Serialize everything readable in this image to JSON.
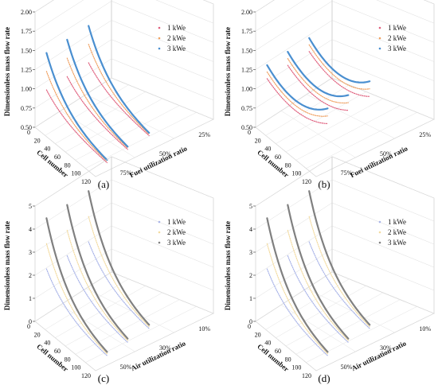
{
  "panels": [
    {
      "label": "(a)",
      "chart_data": {
        "type": "line",
        "title": "",
        "zlabel": "Dimensionless mass flow rate",
        "xlabel": "Cell number",
        "ylabel": "Fuel utilization ratio",
        "zlim": [
          0.5,
          2.0
        ],
        "z_ticks": [
          "2.00",
          "1.75",
          "1.50",
          "1.25",
          "1.00",
          "0.75",
          "0.50"
        ],
        "x_ticks": [
          "0",
          "20",
          "40",
          "60",
          "80",
          "100",
          "120"
        ],
        "y_ticks": [
          "25%",
          "50%",
          "75%"
        ],
        "grid": true,
        "legend_position": "top-right",
        "series": [
          {
            "name": "1 kWe",
            "color": "#e0607e",
            "style": "dot"
          },
          {
            "name": "2 kWe",
            "color": "#f0a060",
            "style": "dot"
          },
          {
            "name": "3 kWe",
            "color": "#4a8fd0",
            "style": "dot"
          }
        ]
      }
    },
    {
      "label": "(b)",
      "chart_data": {
        "type": "line",
        "title": "",
        "zlabel": "Dimensionless mass flow rate",
        "xlabel": "Cell number",
        "ylabel": "Fuel utilization ratio",
        "zlim": [
          0.5,
          2.0
        ],
        "z_ticks": [
          "2.00",
          "1.75",
          "1.50",
          "1.25",
          "1.00",
          "0.75",
          "0.50"
        ],
        "x_ticks": [
          "0",
          "20",
          "40",
          "60",
          "80",
          "100",
          "120"
        ],
        "y_ticks": [
          "25%",
          "50%",
          "75%"
        ],
        "grid": true,
        "legend_position": "top-right",
        "series": [
          {
            "name": "1 kWe",
            "color": "#e0607e",
            "style": "dot"
          },
          {
            "name": "2 kWe",
            "color": "#f0a060",
            "style": "dot"
          },
          {
            "name": "3 kWe",
            "color": "#4a8fd0",
            "style": "dot"
          }
        ]
      }
    },
    {
      "label": "(c)",
      "chart_data": {
        "type": "line",
        "title": "",
        "zlabel": "Dimensionless mass flow rate",
        "xlabel": "Cell number",
        "ylabel": "Air utilization ratio",
        "zlim": [
          0,
          5
        ],
        "z_ticks": [
          "5",
          "4",
          "3",
          "2",
          "1",
          "0"
        ],
        "x_ticks": [
          "0",
          "20",
          "40",
          "60",
          "80",
          "100",
          "120"
        ],
        "y_ticks": [
          "10%",
          "30%",
          "50%"
        ],
        "grid": true,
        "legend_position": "top-right",
        "series": [
          {
            "name": "1 kWe",
            "color": "#a9b4e8",
            "style": "dot"
          },
          {
            "name": "2 kWe",
            "color": "#f3dba0",
            "style": "dot"
          },
          {
            "name": "3 kWe",
            "color": "#808080",
            "style": "dot"
          }
        ]
      }
    },
    {
      "label": "(d)",
      "chart_data": {
        "type": "line",
        "title": "",
        "zlabel": "Dimensionless mass flow rate",
        "xlabel": "Cell number",
        "ylabel": "Air utilization ratio",
        "zlim": [
          0,
          5
        ],
        "z_ticks": [
          "5",
          "4",
          "3",
          "2",
          "1",
          "0"
        ],
        "x_ticks": [
          "0",
          "20",
          "40",
          "60",
          "80",
          "100",
          "120"
        ],
        "y_ticks": [
          "10%",
          "30%",
          "50%"
        ],
        "grid": true,
        "legend_position": "top-right",
        "series": [
          {
            "name": "1 kWe",
            "color": "#a9b4e8",
            "style": "dot"
          },
          {
            "name": "2 kWe",
            "color": "#f3dba0",
            "style": "dot"
          },
          {
            "name": "3 kWe",
            "color": "#808080",
            "style": "dot"
          }
        ]
      }
    }
  ]
}
